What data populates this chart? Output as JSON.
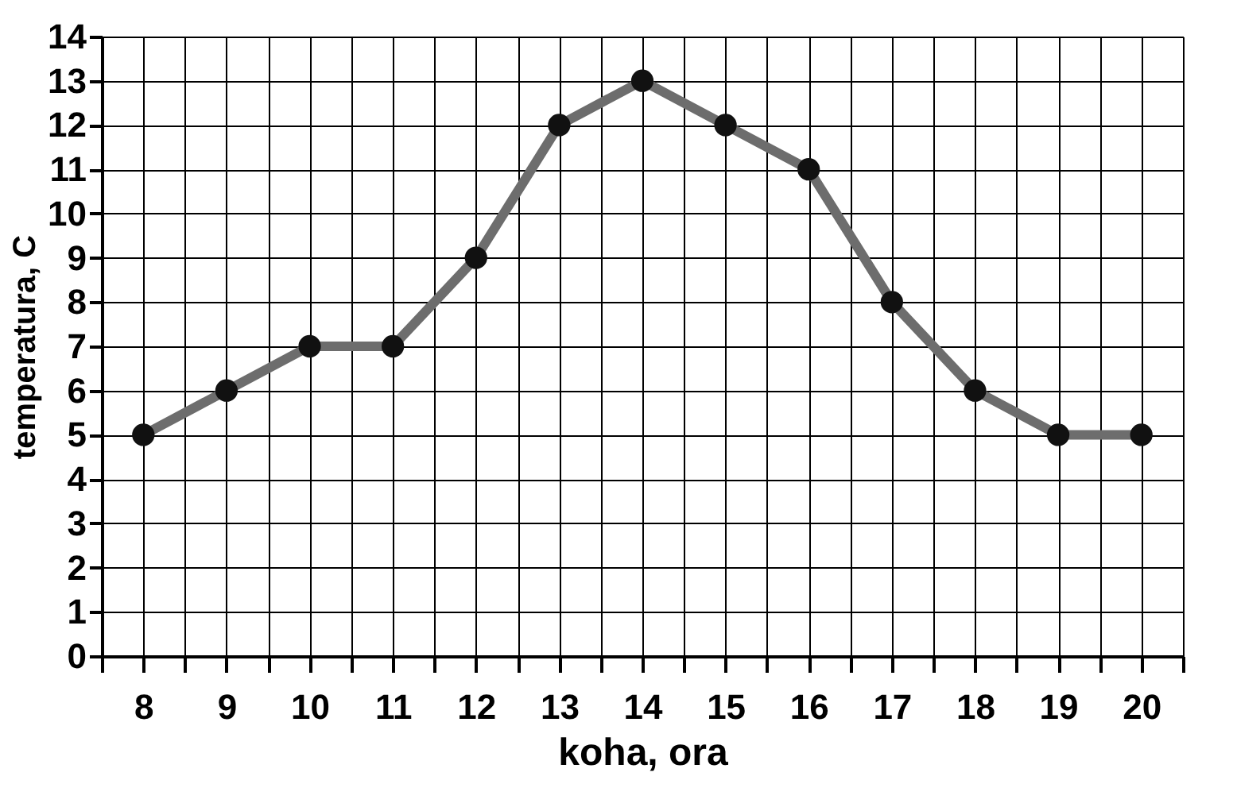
{
  "chart_data": {
    "type": "line",
    "xlabel": "koha, ora",
    "ylabel": "temperatura, C",
    "x": [
      8,
      9,
      10,
      11,
      12,
      13,
      14,
      15,
      16,
      17,
      18,
      19,
      20
    ],
    "series": [
      {
        "color": "#6d6d6d",
        "values": [
          5,
          6,
          7,
          7,
          9,
          12,
          13,
          12,
          11,
          8,
          6,
          5,
          5
        ]
      }
    ],
    "xlim": [
      7.5,
      20.5
    ],
    "xticks": [
      {
        "value": 7.5,
        "label": null
      },
      8,
      {
        "value": 8.5,
        "label": null
      },
      9,
      {
        "value": 9.5,
        "label": null
      },
      10,
      {
        "value": 10.5,
        "label": null
      },
      11,
      {
        "value": 11.5,
        "label": null
      },
      12,
      {
        "value": 12.5,
        "label": null
      },
      13,
      {
        "value": 13.5,
        "label": null
      },
      14,
      {
        "value": 14.5,
        "label": null
      },
      15,
      {
        "value": 15.5,
        "label": null
      },
      16,
      {
        "value": 16.5,
        "label": null
      },
      17,
      {
        "value": 17.5,
        "label": null
      },
      18,
      {
        "value": 18.5,
        "label": null
      },
      19,
      {
        "value": 19.5,
        "label": null
      },
      20,
      {
        "value": 20.5,
        "label": null
      }
    ],
    "ylim": [
      0,
      14
    ],
    "yticks": [
      0,
      1,
      2,
      3,
      4,
      5,
      6,
      7,
      8,
      9,
      10,
      11,
      12,
      13,
      14
    ],
    "grid": true,
    "marker": "circle",
    "line_style": "solid"
  }
}
